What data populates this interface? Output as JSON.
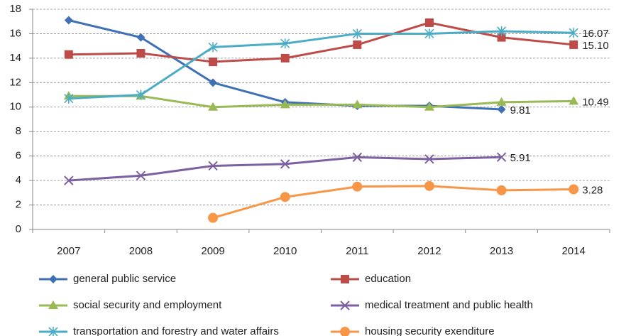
{
  "chart_data": {
    "type": "line",
    "categories": [
      "2007",
      "2008",
      "2009",
      "2010",
      "2011",
      "2012",
      "2013",
      "2014"
    ],
    "ylim": [
      0,
      18
    ],
    "yticks": [
      0,
      2,
      4,
      6,
      8,
      10,
      12,
      14,
      16,
      18
    ],
    "grid": true,
    "series": [
      {
        "name": "general public service",
        "color": "#3f6fb5",
        "marker": "diamond",
        "values": [
          17.1,
          15.7,
          12.0,
          10.4,
          10.1,
          10.1,
          9.81,
          null
        ],
        "value_labels": [
          null,
          null,
          null,
          null,
          null,
          null,
          "9.81",
          null
        ]
      },
      {
        "name": "education",
        "color": "#bd4b48",
        "marker": "square",
        "values": [
          14.3,
          14.4,
          13.7,
          14.0,
          15.1,
          16.9,
          15.7,
          15.1
        ],
        "value_labels": [
          null,
          null,
          null,
          null,
          null,
          null,
          null,
          "15.10"
        ]
      },
      {
        "name": "social security and employment",
        "color": "#98b954",
        "marker": "triangle",
        "values": [
          10.9,
          10.9,
          10.0,
          10.2,
          10.2,
          10.0,
          10.4,
          10.49
        ],
        "value_labels": [
          null,
          null,
          null,
          null,
          null,
          null,
          null,
          "10.49"
        ]
      },
      {
        "name": "medical treatment and public health",
        "color": "#7d60a0",
        "marker": "x",
        "values": [
          4.0,
          4.4,
          5.2,
          5.35,
          5.9,
          5.75,
          5.91,
          null
        ],
        "value_labels": [
          null,
          null,
          null,
          null,
          null,
          null,
          "5.91",
          null
        ]
      },
      {
        "name": "transportation and forestry and water affairs",
        "color": "#4bacc6",
        "marker": "star",
        "values": [
          10.7,
          11.0,
          14.9,
          15.2,
          16.0,
          16.0,
          16.2,
          16.07
        ],
        "value_labels": [
          null,
          null,
          null,
          null,
          null,
          null,
          null,
          "16.07"
        ]
      },
      {
        "name": "housing security exenditure",
        "color": "#f79646",
        "marker": "circle",
        "values": [
          null,
          null,
          0.95,
          2.65,
          3.5,
          3.55,
          3.2,
          3.28
        ],
        "value_labels": [
          null,
          null,
          null,
          null,
          null,
          null,
          null,
          "3.28"
        ]
      }
    ]
  }
}
